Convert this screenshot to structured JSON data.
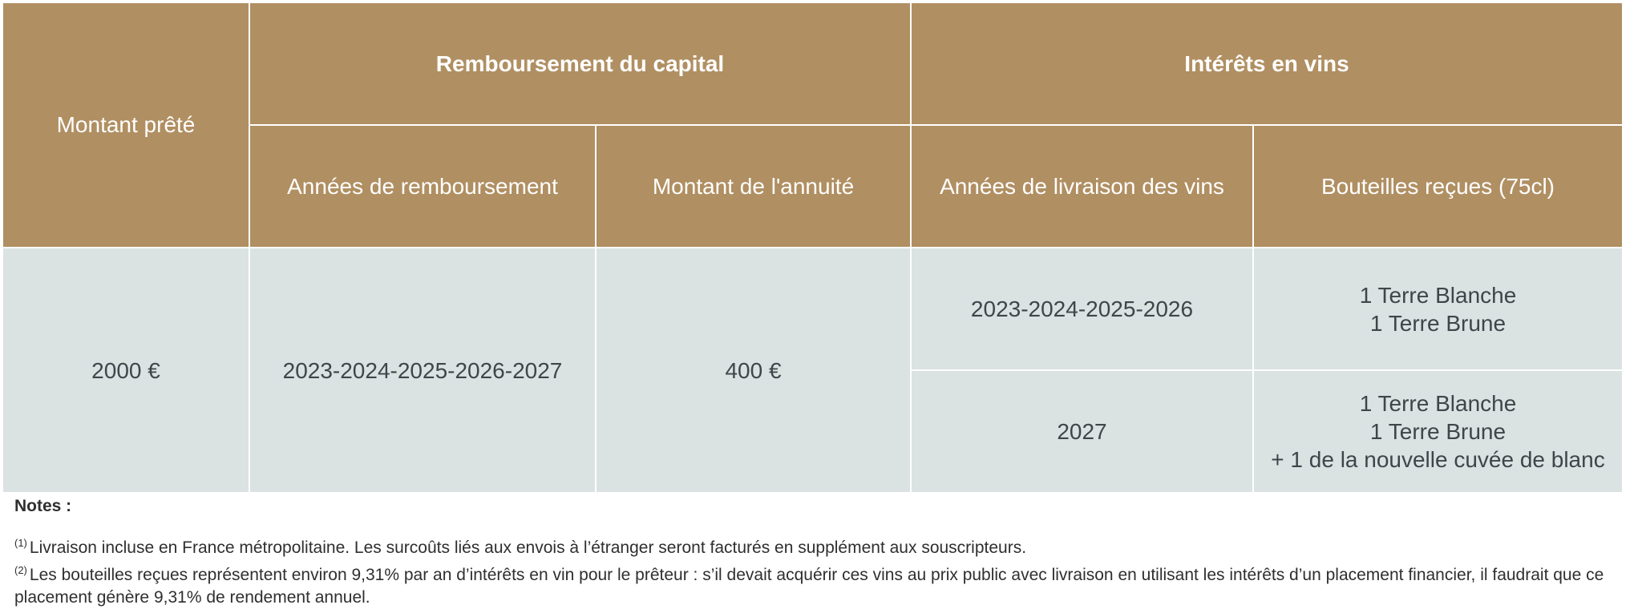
{
  "table": {
    "header": {
      "montant_prete": "Montant prêté",
      "group_capital": "Remboursement du capital",
      "group_interets": "Intérêts en vins",
      "annees_remboursement": "Années de remboursement",
      "montant_annuite": "Montant de l'annuité",
      "annees_livraison": "Années de livraison des vins",
      "bouteilles_recues": "Bouteilles reçues (75cl)"
    },
    "row": {
      "montant": "2000 €",
      "annees_remboursement": "2023-2024-2025-2026-2027",
      "annuite": "400 €",
      "deliveries": [
        {
          "annees": "2023-2024-2025-2026",
          "bouteilles": [
            "1 Terre Blanche",
            "1 Terre Brune"
          ]
        },
        {
          "annees": "2027",
          "bouteilles": [
            "1 Terre Blanche",
            "1 Terre Brune",
            "+ 1 de la nouvelle cuvée de blanc"
          ]
        }
      ]
    }
  },
  "notes": {
    "title": "Notes :",
    "items": [
      {
        "marker": "(1)",
        "text": "Livraison incluse en France métropolitaine. Les surcoûts liés aux envois à l’étranger seront facturés en supplément aux souscripteurs."
      },
      {
        "marker": "(2)",
        "text": "Les bouteilles reçues représentent environ 9,31% par an d’intérêts en vin pour le prêteur : s’il devait acquérir ces vins au prix public avec livraison en utilisant les intérêts d’un placement financier, il faudrait que ce placement génère 9,31% de rendement annuel."
      }
    ]
  },
  "colors": {
    "header_bg": "#b08f62",
    "body_bg": "#dbe2e2",
    "grid_lines": "#ffffff"
  }
}
